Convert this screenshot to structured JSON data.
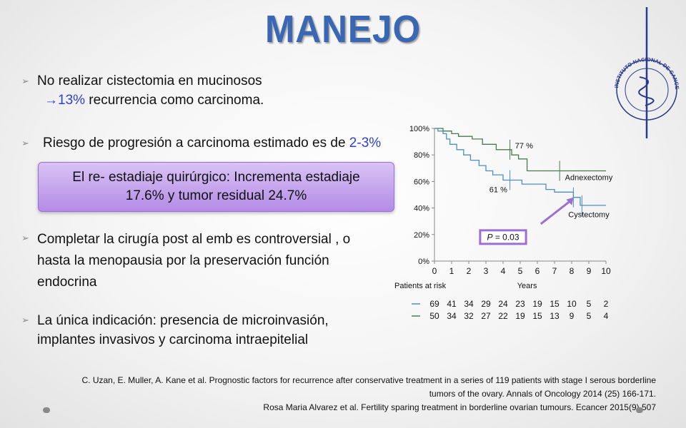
{
  "title": "MANEJO",
  "bullets": {
    "b1": "No realizar cistectomia en mucinosos",
    "b1_sub_arrow": "→",
    "b1_sub_pct": "13%",
    "b1_sub_rest": " recurrencia como carcinoma.",
    "b2_prefix": "Riesgo de progresión a carcinoma estimado es de ",
    "b2_value": "2-3%",
    "b3_line1": "Completar la cirugía post al emb es controversial , o",
    "b3_line2": "hasta la menopausia por la preservación función",
    "b3_line3": "endocrina",
    "b4_line1": "La única indicación: presencia de microinvasión,",
    "b4_line2": "implantes invasivos y carcinoma intraepitelial"
  },
  "callout": {
    "line1": "El re- estadiaje quirúrgico: Incrementa estadiaje",
    "line2": "17.6% y tumor residual 24.7%"
  },
  "references": {
    "r1_line1": "C. Uzan, E. Muller, A. Kane et al. Prognostic factors for recurrence after conservative treatment in a series of 119 patients with stage I serous borderline",
    "r1_line2": "tumors of the ovary. Annals of Oncology 2014 (25) 166-171.",
    "r2": "Rosa Maria Alvarez et al. Fertility sparing treatment in borderline ovarian tumours. Ecancer 2015(9) 507"
  },
  "logo": {
    "text": "INSTITUTO NACIONAL DE CANCEROLOGÍA México"
  },
  "colors": {
    "title": "#3a67b4",
    "highlight": "#2a3fd6",
    "adnexectomy": "#4a7a52",
    "cystectomy": "#4a8fc9",
    "callout": "#c6a6ef"
  },
  "chart_data": {
    "type": "line",
    "xlabel": "Years",
    "ylabel": "",
    "xlim": [
      0,
      10
    ],
    "ylim": [
      0,
      100
    ],
    "x_ticks": [
      "0",
      "1",
      "2",
      "3",
      "4",
      "5",
      "6",
      "7",
      "8",
      "9",
      "10"
    ],
    "y_ticks": [
      "0%",
      "20%",
      "40%",
      "60%",
      "80%",
      "100%"
    ],
    "annotations": {
      "adnex_pct": "77 %",
      "cyst_pct": "61 %",
      "pvalue_prefix": "P",
      "pvalue_rest": " = 0.03"
    },
    "series": [
      {
        "name": "Adnexectomy",
        "color": "#4a7a52",
        "steps": [
          [
            0,
            100
          ],
          [
            0.5,
            100
          ],
          [
            0.5,
            98
          ],
          [
            1.0,
            98
          ],
          [
            1.0,
            96
          ],
          [
            1.4,
            96
          ],
          [
            1.4,
            94
          ],
          [
            2.2,
            94
          ],
          [
            2.2,
            92
          ],
          [
            2.8,
            92
          ],
          [
            2.8,
            88
          ],
          [
            3.6,
            88
          ],
          [
            3.6,
            84
          ],
          [
            4.5,
            84
          ],
          [
            4.5,
            80
          ],
          [
            4.9,
            80
          ],
          [
            4.9,
            77
          ],
          [
            5.4,
            77
          ],
          [
            5.4,
            68
          ],
          [
            10,
            68
          ]
        ]
      },
      {
        "name": "Cystectomy",
        "color": "#4a8fc9",
        "steps": [
          [
            0,
            100
          ],
          [
            0.2,
            100
          ],
          [
            0.2,
            98
          ],
          [
            0.5,
            98
          ],
          [
            0.5,
            96
          ],
          [
            0.7,
            96
          ],
          [
            0.7,
            92
          ],
          [
            0.9,
            92
          ],
          [
            0.9,
            88
          ],
          [
            1.3,
            88
          ],
          [
            1.3,
            84
          ],
          [
            1.7,
            84
          ],
          [
            1.7,
            80
          ],
          [
            2.1,
            80
          ],
          [
            2.1,
            76
          ],
          [
            2.6,
            76
          ],
          [
            2.6,
            72
          ],
          [
            3.0,
            72
          ],
          [
            3.0,
            68
          ],
          [
            3.4,
            68
          ],
          [
            3.4,
            65
          ],
          [
            4.0,
            65
          ],
          [
            4.0,
            61
          ],
          [
            5.1,
            61
          ],
          [
            5.1,
            58
          ],
          [
            6.5,
            58
          ],
          [
            6.5,
            54
          ],
          [
            7.0,
            54
          ],
          [
            7.0,
            52
          ],
          [
            8.1,
            52
          ],
          [
            8.1,
            48
          ],
          [
            8.5,
            48
          ],
          [
            8.5,
            42
          ],
          [
            10,
            42
          ]
        ]
      }
    ],
    "censor_marks": [
      {
        "series": "Adnexectomy",
        "x": 4.4
      },
      {
        "series": "Adnexectomy",
        "x": 7.3
      },
      {
        "series": "Cystectomy",
        "x": 4.4
      },
      {
        "series": "Cystectomy",
        "x": 8.1
      },
      {
        "series": "Cystectomy",
        "x": 8.6
      }
    ],
    "patients_at_risk": {
      "label": "Patients at risk",
      "rows": [
        {
          "name": "Cystectomy",
          "values": [
            "69",
            "41",
            "34",
            "29",
            "24",
            "23",
            "19",
            "15",
            "10",
            "5",
            "2"
          ]
        },
        {
          "name": "Adnexectomy",
          "values": [
            "50",
            "34",
            "32",
            "27",
            "22",
            "19",
            "15",
            "13",
            "9",
            "5",
            "4"
          ]
        }
      ]
    }
  }
}
